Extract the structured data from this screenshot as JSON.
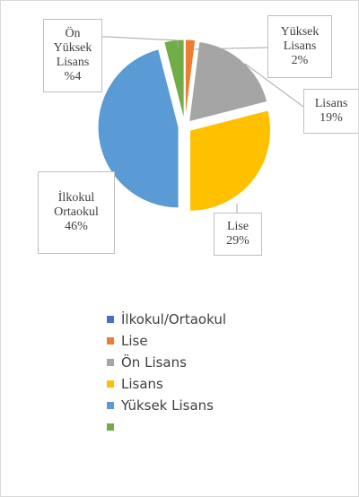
{
  "chart_data": {
    "type": "pie",
    "categories": [
      "İlkokul/Ortaokul",
      "Lise",
      "Ön Lisans",
      "Lisans",
      "Yüksek Lisans",
      null
    ],
    "values": [
      0,
      2,
      19,
      29,
      46,
      4
    ],
    "colors": [
      "#4472c4",
      "#ed7d31",
      "#a5a5a5",
      "#ffc000",
      "#5b9bd5",
      "#70ad47"
    ],
    "label_names": [
      null,
      "Yüksek Lisans",
      "Lisans",
      "Lise",
      "İlkokul Ortaokul",
      "Ön Yüksek Lisans"
    ],
    "value_labels": [
      null,
      "2%",
      "19%",
      "29%",
      "46%",
      "%4"
    ],
    "legend": "bottom"
  }
}
